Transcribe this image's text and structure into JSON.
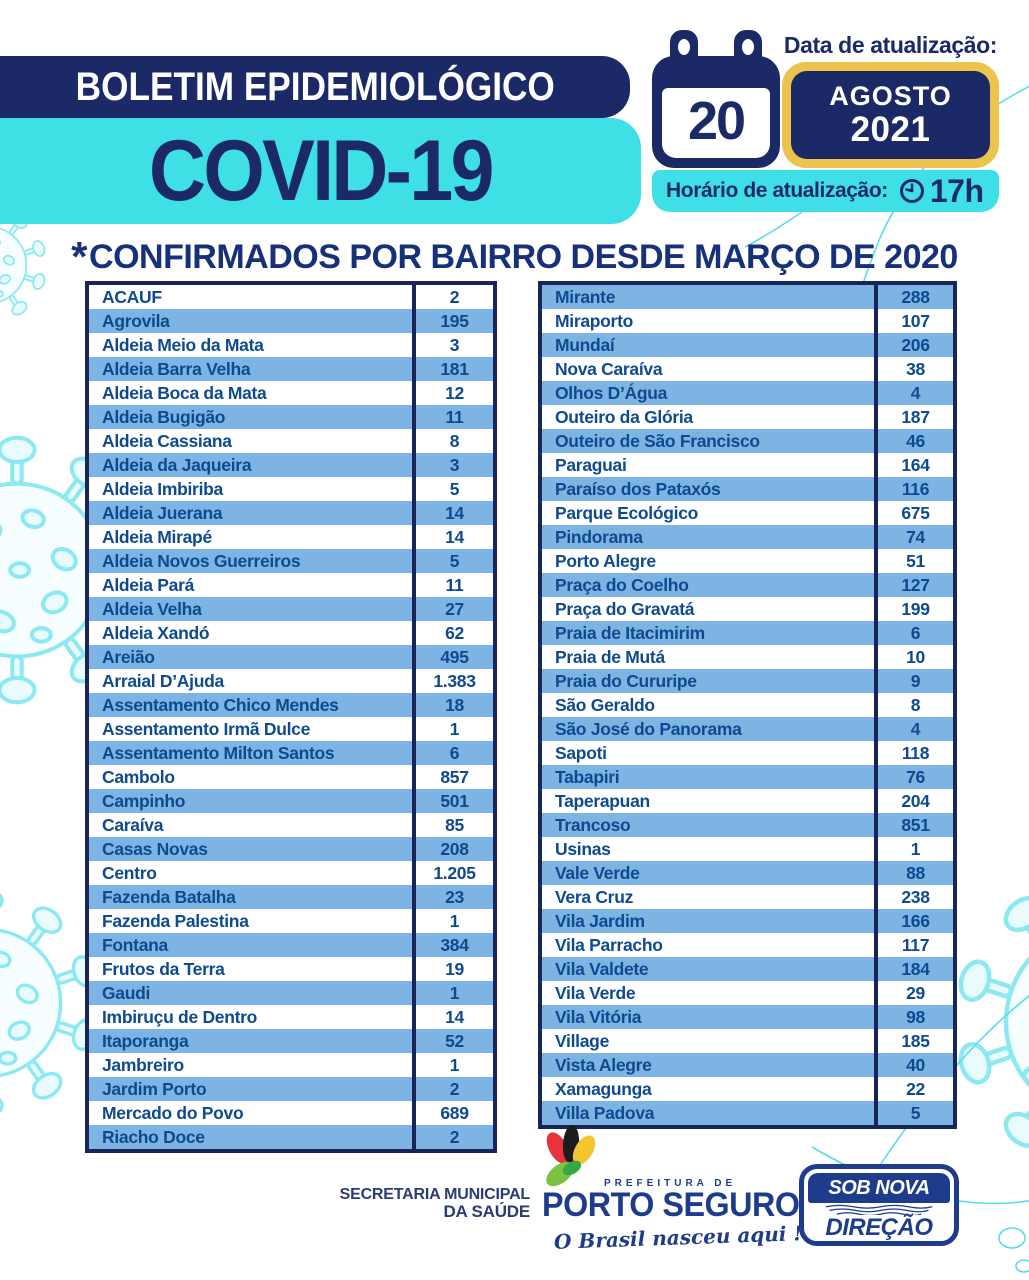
{
  "header": {
    "bulletin_label": "BOLETIM EPIDEMIOLÓGICO",
    "disease": "COVID-19",
    "date_label": "Data de atualização:",
    "day": "20",
    "month": "AGOSTO",
    "year": "2021",
    "time_label": "Horário de atualização:",
    "time_value": "17h"
  },
  "title": {
    "star": "*",
    "text": "CONFIRMADOS POR BAIRRO DESDE MARÇO DE 2020"
  },
  "chart_data": {
    "type": "table",
    "tables": [
      {
        "id": "left",
        "rows": [
          [
            "ACAUF",
            "2"
          ],
          [
            "Agrovila",
            "195"
          ],
          [
            "Aldeia Meio da Mata",
            "3"
          ],
          [
            "Aldeia Barra Velha",
            "181"
          ],
          [
            "Aldeia Boca da Mata",
            "12"
          ],
          [
            "Aldeia Bugigão",
            "11"
          ],
          [
            "Aldeia Cassiana",
            "8"
          ],
          [
            "Aldeia da Jaqueira",
            "3"
          ],
          [
            "Aldeia Imbiriba",
            "5"
          ],
          [
            "Aldeia Juerana",
            "14"
          ],
          [
            "Aldeia Mirapé",
            "14"
          ],
          [
            "Aldeia Novos Guerreiros",
            "5"
          ],
          [
            "Aldeia Pará",
            "11"
          ],
          [
            "Aldeia Velha",
            "27"
          ],
          [
            "Aldeia Xandó",
            "62"
          ],
          [
            "Areião",
            "495"
          ],
          [
            "Arraial D’Ajuda",
            "1.383"
          ],
          [
            "Assentamento Chico Mendes",
            "18"
          ],
          [
            "Assentamento Irmã Dulce",
            "1"
          ],
          [
            "Assentamento Milton Santos",
            "6"
          ],
          [
            "Cambolo",
            "857"
          ],
          [
            "Campinho",
            "501"
          ],
          [
            "Caraíva",
            "85"
          ],
          [
            "Casas Novas",
            "208"
          ],
          [
            "Centro",
            "1.205"
          ],
          [
            "Fazenda Batalha",
            "23"
          ],
          [
            "Fazenda Palestina",
            "1"
          ],
          [
            "Fontana",
            "384"
          ],
          [
            "Frutos da Terra",
            "19"
          ],
          [
            "Gaudi",
            "1"
          ],
          [
            "Imbiruçu de Dentro",
            "14"
          ],
          [
            "Itaporanga",
            "52"
          ],
          [
            "Jambreiro",
            "1"
          ],
          [
            "Jardim Porto",
            "2"
          ],
          [
            "Mercado do Povo",
            "689"
          ],
          [
            "Riacho Doce",
            "2"
          ]
        ]
      },
      {
        "id": "right",
        "rows": [
          [
            "Mirante",
            "288"
          ],
          [
            "Miraporto",
            "107"
          ],
          [
            "Mundaí",
            "206"
          ],
          [
            "Nova Caraíva",
            "38"
          ],
          [
            "Olhos D’Água",
            "4"
          ],
          [
            "Outeiro da Glória",
            "187"
          ],
          [
            "Outeiro de São Francisco",
            "46"
          ],
          [
            "Paraguai",
            "164"
          ],
          [
            "Paraíso dos Pataxós",
            "116"
          ],
          [
            "Parque Ecológico",
            "675"
          ],
          [
            "Pindorama",
            "74"
          ],
          [
            "Porto Alegre",
            "51"
          ],
          [
            "Praça do Coelho",
            "127"
          ],
          [
            "Praça do Gravatá",
            "199"
          ],
          [
            "Praia de Itacimirim",
            "6"
          ],
          [
            "Praia de Mutá",
            "10"
          ],
          [
            "Praia do Cururipe",
            "9"
          ],
          [
            "São Geraldo",
            "8"
          ],
          [
            "São José do Panorama",
            "4"
          ],
          [
            "Sapoti",
            "118"
          ],
          [
            "Tabapiri",
            "76"
          ],
          [
            "Taperapuan",
            "204"
          ],
          [
            "Trancoso",
            "851"
          ],
          [
            "Usinas",
            "1"
          ],
          [
            "Vale Verde",
            "88"
          ],
          [
            "Vera Cruz",
            "238"
          ],
          [
            "Vila Jardim",
            "166"
          ],
          [
            "Vila Parracho",
            "117"
          ],
          [
            "Vila Valdete",
            "184"
          ],
          [
            "Vila Verde",
            "29"
          ],
          [
            "Vila Vitória",
            "98"
          ],
          [
            "Village",
            "185"
          ],
          [
            "Vista Alegre",
            "40"
          ],
          [
            "Xamagunga",
            "22"
          ],
          [
            "Villa Padova",
            "5"
          ]
        ]
      }
    ]
  },
  "footer": {
    "secretariat_line1": "SECRETARIA MUNICIPAL",
    "secretariat_line2": "DA SAÚDE",
    "prefecture_label": "PREFEITURA DE",
    "city": "PORTO SEGURO",
    "slogan": "O Brasil nasceu aqui !",
    "badge_line1": "SOB NOVA",
    "badge_line2": "DIREÇÃO"
  },
  "colors": {
    "navy": "#1b2a66",
    "navy-deep": "#172559",
    "cyan": "#3fdfe6",
    "yellow": "#edc24d",
    "row-blue": "#7eb4e3",
    "table-text": "#0e4a8f",
    "logo-navy": "#1e3c8c",
    "virus-stroke": "#8de9f1",
    "virus-fill": "#eafbfd",
    "line-cyan": "#59dcea",
    "logo-red": "#e8323e",
    "logo-black": "#1c1c1c",
    "logo-yellow": "#f2c531",
    "logo-green": "#7cc142"
  }
}
